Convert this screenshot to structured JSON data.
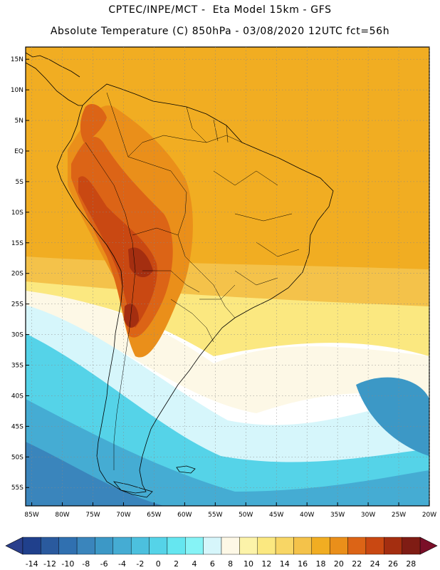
{
  "title": {
    "line1": "CPTEC/INPE/MCT -  Eta Model 15km - GFS",
    "line2": "Absolute Temperature (C) 850hPa - 03/08/2020 12UTC fct=56h"
  },
  "map": {
    "lon_range": [
      -86,
      -20
    ],
    "lat_range": [
      -58,
      17
    ],
    "lat_ticks": [
      {
        "value": 15,
        "label": "15N"
      },
      {
        "value": 10,
        "label": "10N"
      },
      {
        "value": 5,
        "label": "5N"
      },
      {
        "value": 0,
        "label": "EQ"
      },
      {
        "value": -5,
        "label": "5S"
      },
      {
        "value": -10,
        "label": "10S"
      },
      {
        "value": -15,
        "label": "15S"
      },
      {
        "value": -20,
        "label": "20S"
      },
      {
        "value": -25,
        "label": "25S"
      },
      {
        "value": -30,
        "label": "30S"
      },
      {
        "value": -35,
        "label": "35S"
      },
      {
        "value": -40,
        "label": "40S"
      },
      {
        "value": -45,
        "label": "45S"
      },
      {
        "value": -50,
        "label": "50S"
      },
      {
        "value": -55,
        "label": "55S"
      }
    ],
    "lon_ticks": [
      {
        "value": -85,
        "label": "85W"
      },
      {
        "value": -80,
        "label": "80W"
      },
      {
        "value": -75,
        "label": "75W"
      },
      {
        "value": -70,
        "label": "70W"
      },
      {
        "value": -65,
        "label": "65W"
      },
      {
        "value": -60,
        "label": "60W"
      },
      {
        "value": -55,
        "label": "55W"
      },
      {
        "value": -50,
        "label": "50W"
      },
      {
        "value": -45,
        "label": "45W"
      },
      {
        "value": -40,
        "label": "40W"
      },
      {
        "value": -35,
        "label": "35W"
      },
      {
        "value": -30,
        "label": "30W"
      },
      {
        "value": -25,
        "label": "25W"
      },
      {
        "value": -20,
        "label": "20W"
      }
    ]
  },
  "colorbar": {
    "labels": [
      "-14",
      "-12",
      "-10",
      "-8",
      "-6",
      "-4",
      "-2",
      "0",
      "2",
      "4",
      "6",
      "8",
      "10",
      "12",
      "14",
      "16",
      "18",
      "20",
      "22",
      "24",
      "26",
      "28"
    ],
    "low_color": "#2a3f8c",
    "high_color": "#7a0e28",
    "colors": [
      "#20408c",
      "#2a5a9e",
      "#3070b0",
      "#3a85bc",
      "#3c98c6",
      "#45acd3",
      "#4cc0de",
      "#55d3e8",
      "#65e6f0",
      "#86f3f6",
      "#d6f6fb",
      "#fdf8e6",
      "#fcf3a9",
      "#fbe880",
      "#f8d665",
      "#f4c24a",
      "#f1ad22",
      "#ea8f1a",
      "#dc6416",
      "#c94812",
      "#a42e10",
      "#7f1c14"
    ]
  },
  "fields": {
    "ocean_colors": [
      "#f1ad22",
      "#f4c24a",
      "#fbe880",
      "#fdf8e6",
      "#d6f6fb",
      "#55d3e8",
      "#45acd3",
      "#3c98c6",
      "#3a85bc"
    ],
    "land_colors": [
      "#ea8f1a",
      "#dc6416",
      "#c94812",
      "#a42e10"
    ]
  }
}
